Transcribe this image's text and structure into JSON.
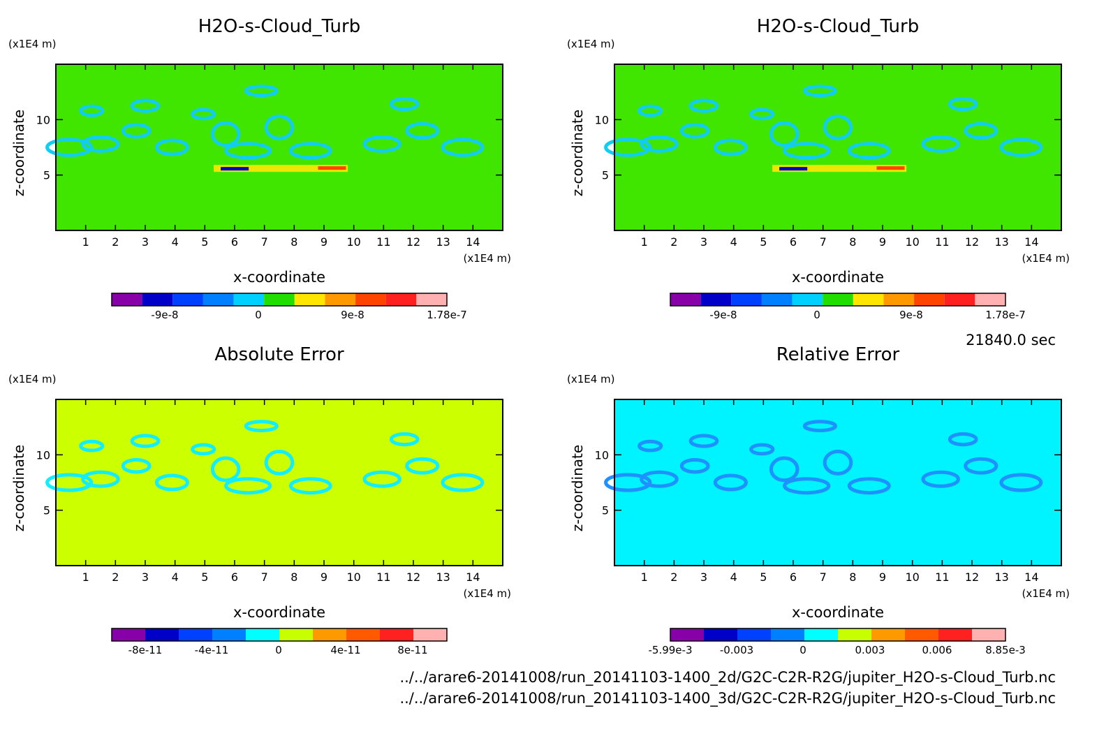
{
  "chart_data": [
    {
      "type": "heatmap",
      "title": "H2O-s-Cloud_Turb",
      "xlabel": "x-coordinate",
      "ylabel": "z-coordinate",
      "x_unit": "(x1E4 m)",
      "y_unit": "(x1E4 m)",
      "xlim": [
        0,
        15
      ],
      "ylim": [
        0,
        15
      ],
      "x_ticks": [
        "1",
        "2",
        "3",
        "4",
        "5",
        "6",
        "7",
        "8",
        "9",
        "10",
        "11",
        "12",
        "13",
        "14"
      ],
      "y_ticks": [
        "5",
        "10"
      ],
      "colorbar": {
        "colors": [
          "#8800a8",
          "#0000c8",
          "#0040ff",
          "#0080ff",
          "#00d0ff",
          "#22dd00",
          "#ffe600",
          "#ff9900",
          "#ff4400",
          "#ff2020",
          "#ffb0b0"
        ],
        "labels": [
          "-9e-8",
          "0",
          "9e-8",
          "1.78e-7"
        ]
      },
      "background": "#40e600",
      "blob_color": "#11cdf0"
    },
    {
      "type": "heatmap",
      "title": "H2O-s-Cloud_Turb",
      "xlabel": "x-coordinate",
      "ylabel": "z-coordinate",
      "x_unit": "(x1E4 m)",
      "y_unit": "(x1E4 m)",
      "xlim": [
        0,
        15
      ],
      "ylim": [
        0,
        15
      ],
      "x_ticks": [
        "1",
        "2",
        "3",
        "4",
        "5",
        "6",
        "7",
        "8",
        "9",
        "10",
        "11",
        "12",
        "13",
        "14"
      ],
      "y_ticks": [
        "5",
        "10"
      ],
      "colorbar": {
        "colors": [
          "#8800a8",
          "#0000c8",
          "#0040ff",
          "#0080ff",
          "#00d0ff",
          "#22dd00",
          "#ffe600",
          "#ff9900",
          "#ff4400",
          "#ff2020",
          "#ffb0b0"
        ],
        "labels": [
          "-9e-8",
          "0",
          "9e-8",
          "1.78e-7"
        ]
      },
      "background": "#40e600",
      "blob_color": "#11cdf0"
    },
    {
      "type": "heatmap",
      "title": "Absolute Error",
      "xlabel": "x-coordinate",
      "ylabel": "z-coordinate",
      "x_unit": "(x1E4 m)",
      "y_unit": "(x1E4 m)",
      "xlim": [
        0,
        15
      ],
      "ylim": [
        0,
        15
      ],
      "x_ticks": [
        "1",
        "2",
        "3",
        "4",
        "5",
        "6",
        "7",
        "8",
        "9",
        "10",
        "11",
        "12",
        "13",
        "14"
      ],
      "y_ticks": [
        "5",
        "10"
      ],
      "colorbar": {
        "colors": [
          "#8800a8",
          "#0000c8",
          "#0040ff",
          "#0080ff",
          "#00ffff",
          "#c8ff00",
          "#ff9900",
          "#ff5a00",
          "#ff2020",
          "#ffb0b0"
        ],
        "labels": [
          "-8e-11",
          "-4e-11",
          "0",
          "4e-11",
          "8e-11"
        ]
      },
      "background": "#ccff00",
      "blob_color": "#11eeff"
    },
    {
      "type": "heatmap",
      "title": "Relative Error",
      "xlabel": "x-coordinate",
      "ylabel": "z-coordinate",
      "x_unit": "(x1E4 m)",
      "y_unit": "(x1E4 m)",
      "xlim": [
        0,
        15
      ],
      "ylim": [
        0,
        15
      ],
      "x_ticks": [
        "1",
        "2",
        "3",
        "4",
        "5",
        "6",
        "7",
        "8",
        "9",
        "10",
        "11",
        "12",
        "13",
        "14"
      ],
      "y_ticks": [
        "5",
        "10"
      ],
      "colorbar": {
        "colors": [
          "#8800a8",
          "#0000c8",
          "#0040ff",
          "#0080ff",
          "#00ffff",
          "#c8ff00",
          "#ff9900",
          "#ff5a00",
          "#ff2020",
          "#ffb0b0"
        ],
        "labels": [
          "-5.99e-3",
          "-0.003",
          "0",
          "0.003",
          "0.006",
          "8.85e-3"
        ]
      },
      "background": "#00f4ff",
      "blob_color": "#1e90ff"
    }
  ],
  "time_label": "21840.0 sec",
  "file_paths": [
    "../../arare6-20141008/run_20141103-1400_2d/G2C-C2R-R2G/jupiter_H2O-s-Cloud_Turb.nc",
    "../../arare6-20141008/run_20141103-1400_3d/G2C-C2R-R2G/jupiter_H2O-s-Cloud_Turb.nc"
  ]
}
